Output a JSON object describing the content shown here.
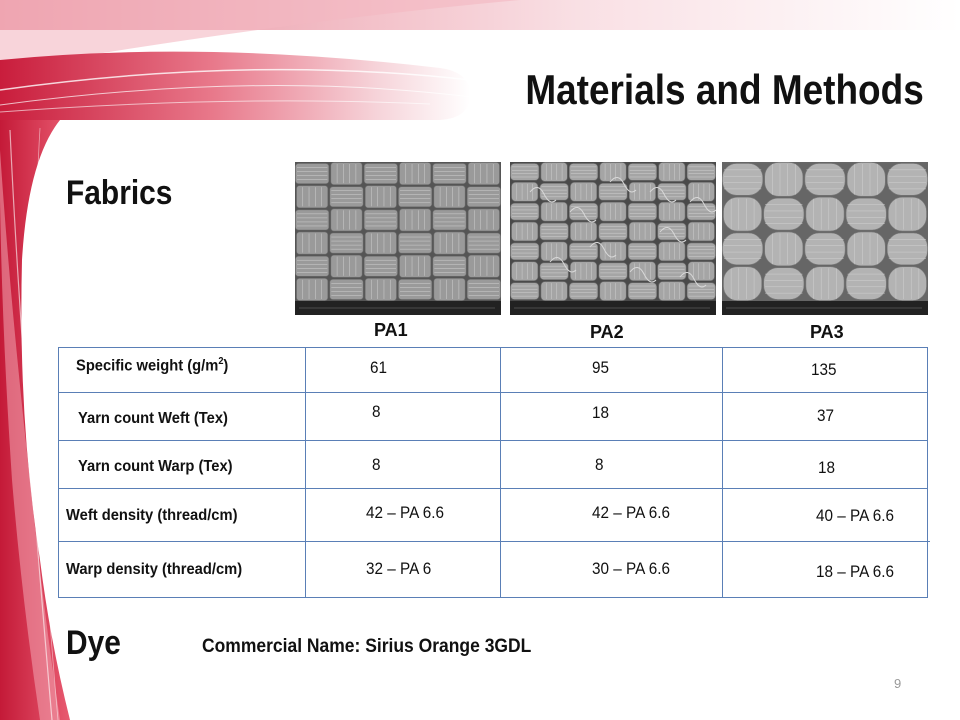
{
  "slide": {
    "title": "Materials and Methods",
    "page_number": "9"
  },
  "fabrics": {
    "heading": "Fabrics",
    "samples": [
      "PA1",
      "PA2",
      "PA3"
    ],
    "rows": [
      {
        "label": "Specific weight (g/m",
        "label_sup": "2",
        "label_after": ")",
        "values": [
          "61",
          "95",
          "135"
        ]
      },
      {
        "label": "Yarn count  Weft  (Tex)",
        "values": [
          "8",
          "18",
          "37"
        ]
      },
      {
        "label": "Yarn count  Warp (Tex)",
        "values": [
          "8",
          "8",
          "18"
        ]
      },
      {
        "label": "Weft density (thread/cm)",
        "values": [
          "42 – PA 6.6",
          "42 – PA 6.6",
          "40 – PA 6.6"
        ]
      },
      {
        "label": "Warp density (thread/cm)",
        "values": [
          "32 – PA 6",
          "30 – PA 6.6",
          "18 – PA 6.6"
        ]
      }
    ]
  },
  "dye": {
    "heading": "Dye",
    "commercial_name": "Commercial Name:  Sirius Orange 3GDL"
  },
  "colors": {
    "accent_red": "#d9334f",
    "accent_pink": "#f2b3bd",
    "table_line": "#5a7fb6"
  }
}
